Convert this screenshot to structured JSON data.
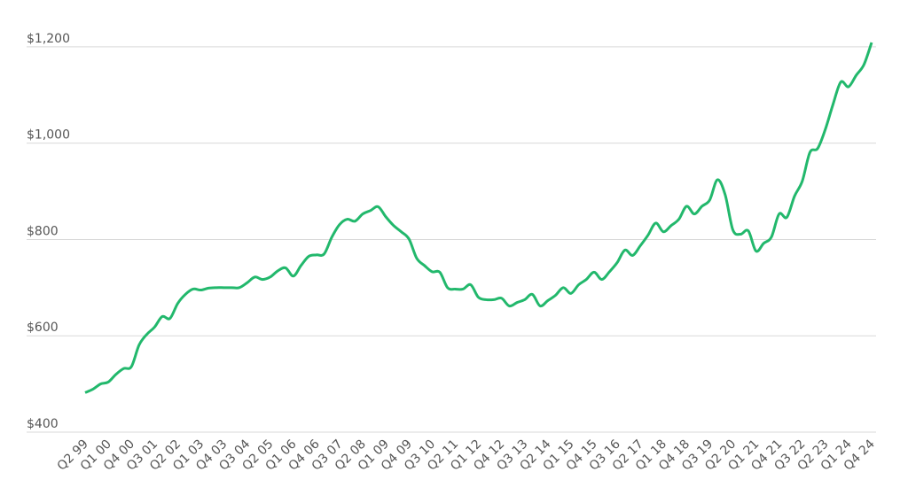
{
  "chart_data": {
    "type": "line",
    "categories": [
      "Q2 99",
      null,
      null,
      "Q1 00",
      null,
      null,
      "Q4 00",
      null,
      null,
      "Q3 01",
      null,
      null,
      "Q2 02",
      null,
      null,
      "Q1 03",
      null,
      null,
      "Q4 03",
      null,
      null,
      "Q3 04",
      null,
      null,
      "Q2 05",
      null,
      null,
      "Q1 06",
      null,
      null,
      "Q4 06",
      null,
      null,
      "Q3 07",
      null,
      null,
      "Q2 08",
      null,
      null,
      "Q1 09",
      null,
      null,
      "Q4 09",
      null,
      null,
      "Q3 10",
      null,
      null,
      "Q2 11",
      null,
      null,
      "Q1 12",
      null,
      null,
      "Q4 12",
      null,
      null,
      "Q3 13",
      null,
      null,
      "Q2 14",
      null,
      null,
      "Q1 15",
      null,
      null,
      "Q4 15",
      null,
      null,
      "Q3 16",
      null,
      null,
      "Q2 17",
      null,
      null,
      "Q1 18",
      null,
      null,
      "Q4 18",
      null,
      null,
      "Q3 19",
      null,
      null,
      "Q2 20",
      null,
      null,
      "Q1 21",
      null,
      null,
      "Q4 21",
      null,
      null,
      "Q3 22",
      null,
      null,
      "Q2 23",
      null,
      null,
      "Q1 24",
      null,
      null,
      "Q4 24"
    ],
    "values": [
      482,
      489,
      500,
      504,
      520,
      532,
      536,
      581,
      603,
      618,
      640,
      636,
      667,
      686,
      697,
      695,
      699,
      700,
      700,
      700,
      700,
      710,
      722,
      717,
      722,
      735,
      741,
      724,
      746,
      765,
      768,
      770,
      805,
      831,
      842,
      838,
      853,
      860,
      868,
      847,
      829,
      816,
      801,
      761,
      746,
      733,
      732,
      700,
      697,
      697,
      706,
      680,
      675,
      675,
      678,
      662,
      669,
      675,
      686,
      662,
      673,
      684,
      700,
      688,
      706,
      717,
      732,
      717,
      733,
      752,
      778,
      767,
      787,
      809,
      834,
      816,
      829,
      842,
      869,
      853,
      869,
      882,
      924,
      893,
      820,
      811,
      818,
      776,
      792,
      805,
      853,
      846,
      890,
      921,
      981,
      989,
      1029,
      1081,
      1127,
      1117,
      1141,
      1163,
      1209
    ],
    "color": "#22b86c",
    "ylim": [
      400,
      1220
    ],
    "yticks": [
      {
        "value": 400,
        "label": "$400"
      },
      {
        "value": 600,
        "label": "$600"
      },
      {
        "value": 800,
        "label": "$800"
      },
      {
        "value": 1000,
        "label": "$1,000"
      },
      {
        "value": 1200,
        "label": "$1,200"
      }
    ],
    "grid": true
  }
}
